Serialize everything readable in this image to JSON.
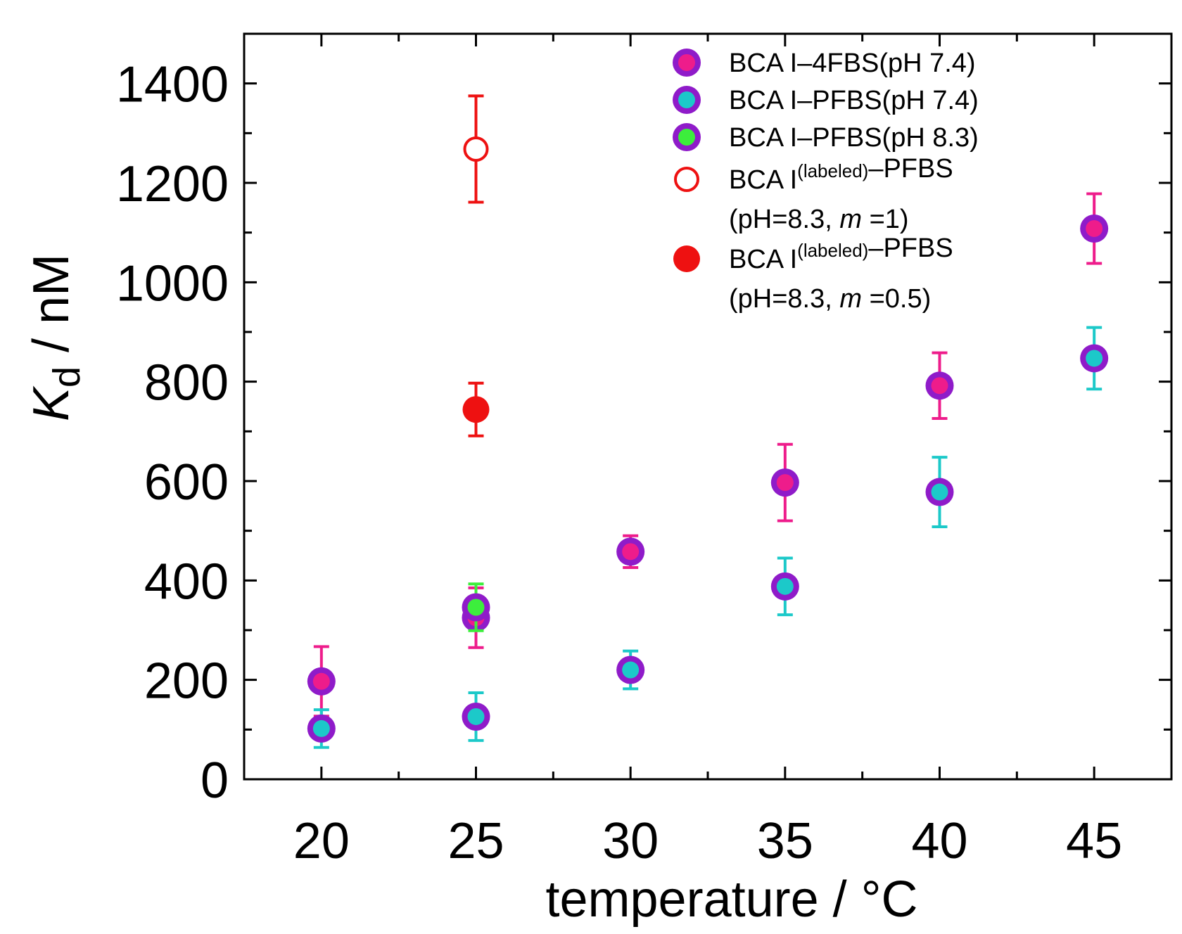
{
  "chart_data": {
    "type": "scatter",
    "title": "",
    "xlabel": {
      "main": "temperature / ",
      "unit": "°C"
    },
    "ylabel": {
      "symbol": "K",
      "subscript": "d",
      "unit": " / nM"
    },
    "xlim": [
      17.5,
      47.5
    ],
    "ylim": [
      0,
      1500
    ],
    "xticks": [
      20,
      25,
      30,
      35,
      40,
      45
    ],
    "yticks": [
      0,
      200,
      400,
      600,
      800,
      1000,
      1200,
      1400
    ],
    "grid": false,
    "legend_position": "top-right",
    "series": [
      {
        "name": "BCA I–4FBS(pH 7.4)",
        "marker": "filled-ringed",
        "color": "#ee1c8b",
        "ring": "#8f1bc9",
        "points": [
          {
            "x": 20,
            "y": 197,
            "err": 70
          },
          {
            "x": 25,
            "y": 325,
            "err": 60
          },
          {
            "x": 30,
            "y": 458,
            "err": 32
          },
          {
            "x": 35,
            "y": 597,
            "err": 77
          },
          {
            "x": 40,
            "y": 792,
            "err": 66
          },
          {
            "x": 45,
            "y": 1108,
            "err": 70
          }
        ]
      },
      {
        "name": "BCA I–PFBS(pH 7.4)",
        "marker": "filled-ringed",
        "color": "#1cc9c9",
        "ring": "#8f1bc9",
        "points": [
          {
            "x": 20,
            "y": 102,
            "err": 38
          },
          {
            "x": 25,
            "y": 126,
            "err": 48
          },
          {
            "x": 30,
            "y": 220,
            "err": 38
          },
          {
            "x": 35,
            "y": 388,
            "err": 57
          },
          {
            "x": 40,
            "y": 578,
            "err": 70
          },
          {
            "x": 45,
            "y": 847,
            "err": 62
          }
        ]
      },
      {
        "name": "BCA I–PFBS(pH 8.3)",
        "marker": "filled-ringed",
        "color": "#3cee3c",
        "ring": "#8f1bc9",
        "points": [
          {
            "x": 25,
            "y": 346,
            "err": 47
          }
        ]
      },
      {
        "name": "BCA I(labeled)–PFBS (pH=8.3, m =1)",
        "marker": "open-circle",
        "color": "#ee1111",
        "points": [
          {
            "x": 25,
            "y": 1268,
            "err": 107
          }
        ]
      },
      {
        "name": "BCA I(labeled)–PFBS (pH=8.3, m =0.5)",
        "marker": "filled-circle",
        "color": "#ee1111",
        "points": [
          {
            "x": 25,
            "y": 744,
            "err": 53
          }
        ]
      }
    ],
    "legend": [
      {
        "lines": [
          {
            "parts": [
              {
                "t": "BCA I–4FBS(pH 7.4)"
              }
            ]
          }
        ]
      },
      {
        "lines": [
          {
            "parts": [
              {
                "t": "BCA I–PFBS(pH 7.4)"
              }
            ]
          }
        ]
      },
      {
        "lines": [
          {
            "parts": [
              {
                "t": "BCA I–PFBS(pH 8.3)"
              }
            ]
          }
        ]
      },
      {
        "lines": [
          {
            "parts": [
              {
                "t": "BCA I"
              },
              {
                "t": "(labeled)",
                "sup": true
              },
              {
                "t": "–PFBS"
              }
            ]
          },
          {
            "parts": [
              {
                "t": "(pH=8.3, "
              },
              {
                "t": "m",
                "italic": true
              },
              {
                "t": " =1)"
              }
            ]
          }
        ]
      },
      {
        "lines": [
          {
            "parts": [
              {
                "t": "BCA I"
              },
              {
                "t": "(labeled)",
                "sup": true
              },
              {
                "t": "–PFBS"
              }
            ]
          },
          {
            "parts": [
              {
                "t": "(pH=8.3, "
              },
              {
                "t": "m",
                "italic": true
              },
              {
                "t": " =0.5)"
              }
            ]
          }
        ]
      }
    ]
  }
}
